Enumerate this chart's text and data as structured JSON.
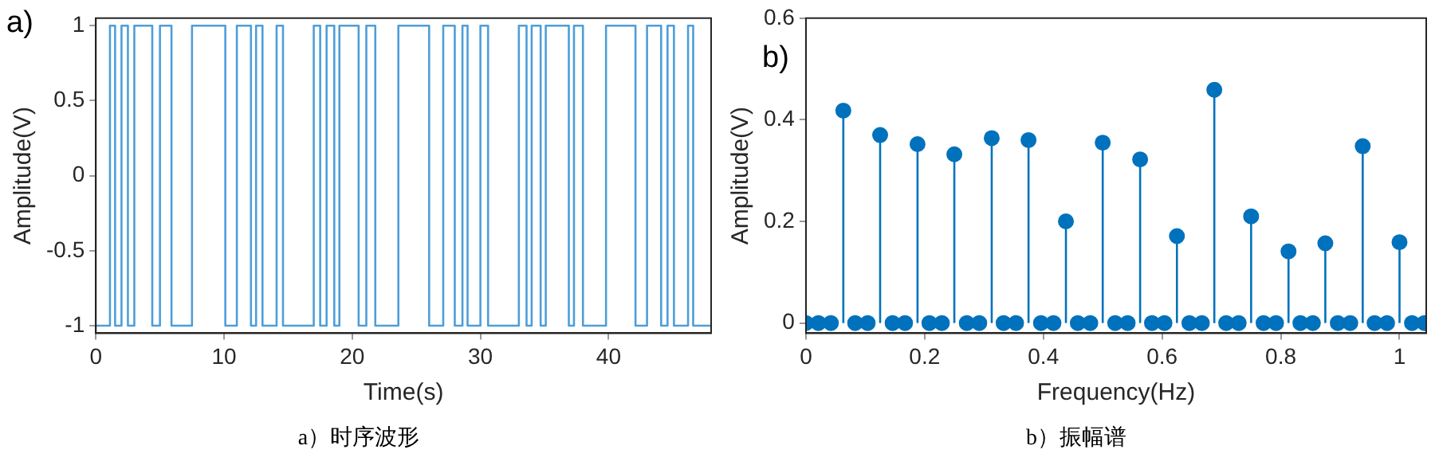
{
  "chart_data": [
    {
      "type": "step",
      "title": "a)",
      "xlabel": "Time(s)",
      "ylabel": "Amplitude(V)",
      "annotations": [
        "a）时序波形"
      ],
      "color": "#4d9ed9",
      "marker": "none",
      "grid": false,
      "legend": false,
      "x": [
        0,
        1.1,
        1.5,
        2.0,
        2.5,
        3.0,
        4.4,
        5.0,
        5.9,
        7.5,
        10.1,
        11.0,
        12.1,
        12.5,
        13.0,
        14.1,
        14.6,
        17.0,
        17.5,
        18.0,
        18.6,
        19.0,
        20.5,
        21.1,
        21.8,
        23.6,
        26.0,
        27.1,
        28.0,
        28.6,
        29.0,
        30.0,
        30.6,
        33.0,
        33.6,
        34.0,
        34.7,
        35.1,
        36.9,
        37.3,
        38.0,
        39.8,
        42.1,
        43.0,
        44.1,
        44.6,
        45.1,
        46.2,
        46.6,
        48
      ],
      "values": [
        -1,
        1,
        -1,
        1,
        -1,
        1,
        -1,
        1,
        -1,
        1,
        -1,
        1,
        -1,
        1,
        -1,
        1,
        -1,
        1,
        -1,
        1,
        -1,
        1,
        -1,
        1,
        -1,
        1,
        -1,
        1,
        -1,
        1,
        -1,
        1,
        -1,
        1,
        -1,
        1,
        -1,
        1,
        -1,
        1,
        -1,
        1,
        -1,
        1,
        -1,
        1,
        -1,
        1,
        -1,
        -1
      ],
      "xlim": [
        0,
        48
      ],
      "xticks": [
        0,
        10,
        20,
        30,
        40
      ],
      "ylim": [
        -1.05,
        1.05
      ],
      "yticks": [
        -1,
        -0.5,
        0,
        0.5,
        1
      ]
    },
    {
      "type": "lollipop",
      "title": "b)",
      "xlabel": "Frequency(Hz)",
      "ylabel": "Amplitude(V)",
      "annotations": [
        "b）振幅谱"
      ],
      "color": "#0072bd",
      "marker": "circle",
      "grid": false,
      "legend": false,
      "x": [
        0,
        0.021,
        0.042,
        0.063,
        0.083,
        0.104,
        0.125,
        0.146,
        0.167,
        0.188,
        0.208,
        0.229,
        0.25,
        0.271,
        0.292,
        0.313,
        0.333,
        0.354,
        0.375,
        0.396,
        0.417,
        0.438,
        0.458,
        0.479,
        0.5,
        0.521,
        0.542,
        0.563,
        0.583,
        0.604,
        0.625,
        0.646,
        0.667,
        0.688,
        0.708,
        0.729,
        0.75,
        0.771,
        0.792,
        0.813,
        0.833,
        0.854,
        0.875,
        0.896,
        0.917,
        0.938,
        0.958,
        0.979,
        1,
        1.021,
        1.042
      ],
      "values": [
        0,
        0,
        0,
        0.418,
        0,
        0,
        0.37,
        0,
        0,
        0.352,
        0,
        0,
        0.332,
        0,
        0,
        0.364,
        0,
        0,
        0.36,
        0,
        0,
        0.2,
        0,
        0,
        0.355,
        0,
        0,
        0.322,
        0,
        0,
        0.171,
        0,
        0,
        0.459,
        0,
        0,
        0.21,
        0,
        0,
        0.141,
        0,
        0,
        0.157,
        0,
        0,
        0.348,
        0,
        0,
        0.159,
        0,
        0
      ],
      "xlim": [
        0,
        1.045
      ],
      "xticks": [
        0,
        0.2,
        0.4,
        0.6,
        0.8,
        1
      ],
      "ylim": [
        -0.02,
        0.6
      ],
      "yticks": [
        0,
        0.2,
        0.4,
        0.6
      ]
    }
  ]
}
